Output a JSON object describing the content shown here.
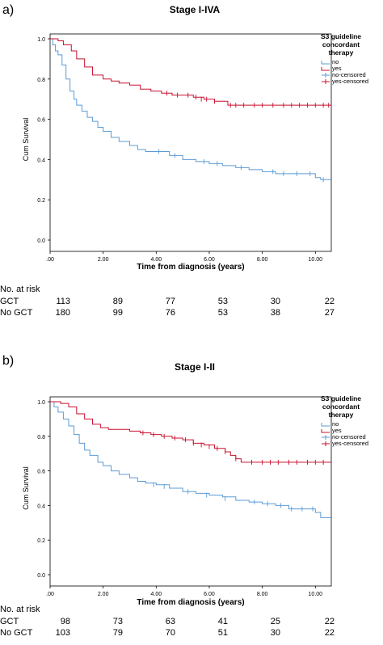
{
  "panels": [
    {
      "letter": "a)",
      "risk_header": "No. at risk",
      "risk_rows": [
        {
          "label": "GCT",
          "values": [
            "113",
            "89",
            "77",
            "53",
            "30",
            "22"
          ]
        },
        {
          "label": "No GCT",
          "values": [
            "180",
            "99",
            "76",
            "53",
            "38",
            "27"
          ]
        }
      ]
    },
    {
      "letter": "b)",
      "risk_header": "No. at risk",
      "risk_rows": [
        {
          "label": "GCT",
          "values": [
            "98",
            "73",
            "63",
            "41",
            "25",
            "22"
          ]
        },
        {
          "label": "No GCT",
          "values": [
            "103",
            "79",
            "70",
            "51",
            "30",
            "22"
          ]
        }
      ]
    }
  ],
  "chart_data": [
    {
      "type": "line",
      "title": "Stage I-IVA",
      "xlabel": "Time from diagnosis (years)",
      "ylabel": "Cum Survival",
      "xlim": [
        0,
        10.6
      ],
      "ylim": [
        0,
        1.0
      ],
      "xticks": [
        0,
        2,
        4,
        6,
        8,
        10
      ],
      "xtick_labels": [
        ".00",
        "2.00",
        "4.00",
        "6.00",
        "8.00",
        "10.00"
      ],
      "yticks": [
        0,
        0.2,
        0.4,
        0.6,
        0.8,
        1.0
      ],
      "ytick_labels": [
        "0.0",
        "0.2",
        "0.4",
        "0.6",
        "0.8",
        "1.0"
      ],
      "legend": {
        "title_lines": [
          "S3 guideline",
          "concordant",
          "therapy"
        ],
        "entries": [
          "no",
          "yes",
          "no-censored",
          "yes-censored"
        ],
        "placement": "right"
      },
      "series": [
        {
          "name": "no",
          "color": "#5b9bd5",
          "x": [
            0,
            0.1,
            0.2,
            0.3,
            0.45,
            0.6,
            0.75,
            0.9,
            1.0,
            1.2,
            1.4,
            1.6,
            1.8,
            2.0,
            2.3,
            2.6,
            3.0,
            3.3,
            3.6,
            4.0,
            4.5,
            5.0,
            5.5,
            6.0,
            6.5,
            7.0,
            7.5,
            8.0,
            8.5,
            9.0,
            9.5,
            10.0,
            10.2,
            10.6
          ],
          "y": [
            1.0,
            0.97,
            0.94,
            0.92,
            0.87,
            0.8,
            0.74,
            0.7,
            0.67,
            0.64,
            0.61,
            0.59,
            0.56,
            0.54,
            0.51,
            0.49,
            0.47,
            0.45,
            0.44,
            0.44,
            0.42,
            0.4,
            0.39,
            0.38,
            0.37,
            0.36,
            0.35,
            0.34,
            0.33,
            0.33,
            0.33,
            0.31,
            0.3,
            0.3
          ],
          "censored_x": [
            4.1,
            4.7,
            5.8,
            6.3,
            7.2,
            8.4,
            8.8,
            9.3,
            9.8,
            10.3
          ],
          "censored_y": [
            0.44,
            0.42,
            0.39,
            0.38,
            0.36,
            0.34,
            0.33,
            0.33,
            0.33,
            0.3
          ]
        },
        {
          "name": "yes",
          "color": "#c8102e",
          "x": [
            0,
            0.3,
            0.5,
            0.8,
            1.0,
            1.3,
            1.6,
            2.0,
            2.3,
            2.6,
            3.0,
            3.4,
            3.8,
            4.2,
            4.6,
            5.0,
            5.4,
            5.8,
            6.2,
            6.5,
            6.7,
            7.5,
            10.6
          ],
          "y": [
            1.0,
            0.99,
            0.97,
            0.94,
            0.9,
            0.86,
            0.82,
            0.8,
            0.79,
            0.78,
            0.77,
            0.75,
            0.74,
            0.73,
            0.72,
            0.72,
            0.71,
            0.7,
            0.69,
            0.69,
            0.67,
            0.67,
            0.67
          ],
          "censored_x": [
            4.4,
            4.8,
            5.2,
            5.5,
            5.7,
            5.9,
            6.2,
            6.8,
            7.0,
            7.3,
            7.7,
            8.0,
            8.4,
            8.8,
            9.1,
            9.4,
            9.7,
            10.0,
            10.3,
            10.5
          ],
          "censored_y": [
            0.73,
            0.72,
            0.72,
            0.71,
            0.7,
            0.7,
            0.69,
            0.67,
            0.67,
            0.67,
            0.67,
            0.67,
            0.67,
            0.67,
            0.67,
            0.67,
            0.67,
            0.67,
            0.67,
            0.67
          ]
        }
      ]
    },
    {
      "type": "line",
      "title": "Stage I-II",
      "xlabel": "Time from diagnosis (years)",
      "ylabel": "Cum Survival",
      "xlim": [
        0,
        10.6
      ],
      "ylim": [
        0,
        1.0
      ],
      "xticks": [
        0,
        2,
        4,
        6,
        8,
        10
      ],
      "xtick_labels": [
        ".00",
        "2.00",
        "4.00",
        "6.00",
        "8.00",
        "10.00"
      ],
      "yticks": [
        0,
        0.2,
        0.4,
        0.6,
        0.8,
        1.0
      ],
      "ytick_labels": [
        "0.0",
        "0.2",
        "0.4",
        "0.6",
        "0.8",
        "1.0"
      ],
      "legend": {
        "title_lines": [
          "S3 guideline",
          "concordant",
          "therapy"
        ],
        "entries": [
          "no",
          "yes",
          "no-censored",
          "yes-censored"
        ],
        "placement": "right"
      },
      "series": [
        {
          "name": "no",
          "color": "#5b9bd5",
          "x": [
            0,
            0.15,
            0.3,
            0.5,
            0.7,
            0.9,
            1.1,
            1.3,
            1.5,
            1.8,
            2.0,
            2.3,
            2.6,
            3.0,
            3.3,
            3.6,
            4.0,
            4.5,
            5.0,
            5.5,
            6.0,
            6.5,
            7.0,
            7.5,
            8.0,
            8.5,
            9.0,
            9.5,
            10.0,
            10.2,
            10.6
          ],
          "y": [
            1.0,
            0.97,
            0.94,
            0.9,
            0.86,
            0.81,
            0.76,
            0.72,
            0.69,
            0.65,
            0.63,
            0.6,
            0.58,
            0.56,
            0.54,
            0.53,
            0.52,
            0.5,
            0.48,
            0.47,
            0.46,
            0.45,
            0.43,
            0.42,
            0.41,
            0.4,
            0.38,
            0.38,
            0.36,
            0.33,
            0.33
          ],
          "censored_x": [
            3.9,
            4.3,
            5.2,
            5.9,
            6.6,
            7.7,
            8.2,
            8.7,
            9.1,
            9.5,
            9.9
          ],
          "censored_y": [
            0.52,
            0.51,
            0.48,
            0.46,
            0.44,
            0.42,
            0.41,
            0.4,
            0.38,
            0.38,
            0.38
          ]
        },
        {
          "name": "yes",
          "color": "#c8102e",
          "x": [
            0,
            0.4,
            0.7,
            1.0,
            1.3,
            1.6,
            1.9,
            2.2,
            2.6,
            3.0,
            3.4,
            3.8,
            4.2,
            4.6,
            5.0,
            5.4,
            5.8,
            6.2,
            6.6,
            6.8,
            7.0,
            7.2,
            7.5,
            10.6
          ],
          "y": [
            1.0,
            0.99,
            0.97,
            0.93,
            0.9,
            0.87,
            0.85,
            0.84,
            0.84,
            0.83,
            0.82,
            0.81,
            0.8,
            0.79,
            0.78,
            0.76,
            0.75,
            0.73,
            0.71,
            0.69,
            0.67,
            0.65,
            0.65,
            0.65
          ],
          "censored_x": [
            3.5,
            3.9,
            4.3,
            4.7,
            5.1,
            5.4,
            5.7,
            6.0,
            6.3,
            6.6,
            7.0,
            7.6,
            8.0,
            8.3,
            8.6,
            9.0,
            9.3,
            9.7,
            10.0,
            10.3
          ],
          "censored_y": [
            0.82,
            0.81,
            0.8,
            0.79,
            0.78,
            0.76,
            0.75,
            0.74,
            0.73,
            0.71,
            0.67,
            0.65,
            0.65,
            0.65,
            0.65,
            0.65,
            0.65,
            0.65,
            0.65,
            0.65
          ]
        }
      ]
    }
  ]
}
